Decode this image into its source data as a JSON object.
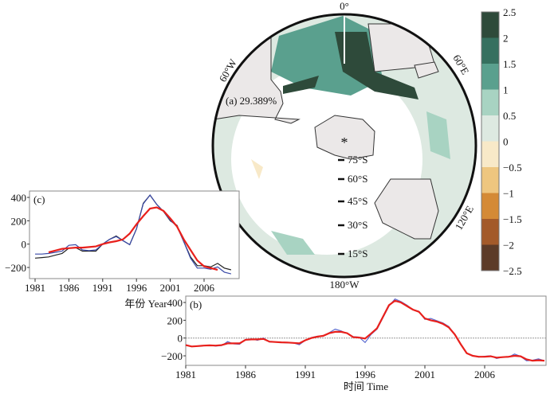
{
  "map": {
    "panel_label": "(a) 29.389%",
    "lon_labels": {
      "top": "0°",
      "right_upper": "60°E",
      "right_lower": "120°E",
      "bottom": "180°W",
      "left_upper": "60°W"
    },
    "lat_labels": [
      "75°S",
      "60°S",
      "45°S",
      "30°S",
      "15°S"
    ],
    "colors": {
      "land": "#ebe8e8",
      "coast": "#333333",
      "border": "#111111"
    }
  },
  "colorbar": {
    "ticks": [
      "2.5",
      "2",
      "1.5",
      "1",
      "0.5",
      "0",
      "−0.5",
      "−1",
      "−1.5",
      "−2",
      "−2.5"
    ],
    "colors": [
      "#2e4a3a",
      "#36705f",
      "#5aa08e",
      "#a8d3c2",
      "#dde9e1",
      "#f8e9c8",
      "#eec67f",
      "#d48a36",
      "#a35a2a",
      "#5c3b28"
    ]
  },
  "chart_data": [
    {
      "type": "line",
      "panel_label": "(c)",
      "xlabel": "年份 Year",
      "ylabel": "",
      "xlim": [
        1980.2,
        2011
      ],
      "ylim": [
        -260,
        440
      ],
      "xticks": [
        "1981",
        "1986",
        "1991",
        "1996",
        "2001",
        "2006"
      ],
      "yticks": [
        "400",
        "200",
        "0",
        "−200"
      ],
      "ytick_values": [
        400,
        200,
        0,
        -200
      ],
      "series": [
        {
          "name": "black",
          "color": "#222222",
          "x_start": 1981,
          "values": [
            -120,
            -115,
            -110,
            -95,
            -80,
            -35,
            -30,
            -60,
            -60,
            -60,
            0,
            40,
            70,
            30,
            -5,
            130,
            350,
            420,
            340,
            280,
            200,
            160,
            20,
            -110,
            -185,
            -185,
            -195,
            -165,
            -205,
            -220
          ]
        },
        {
          "name": "blue",
          "color": "#3a4aa8",
          "x_start": 1981,
          "values": [
            -85,
            -85,
            -80,
            -70,
            -60,
            -10,
            -5,
            -50,
            -55,
            -50,
            0,
            40,
            65,
            30,
            -5,
            130,
            345,
            420,
            340,
            280,
            205,
            150,
            20,
            -120,
            -205,
            -205,
            -215,
            -195,
            -240,
            -255
          ]
        },
        {
          "name": "red",
          "color": "#e8201c",
          "x_start": 1983,
          "values": [
            -70,
            -55,
            -40,
            -35,
            -30,
            -30,
            -25,
            -20,
            0,
            15,
            25,
            40,
            90,
            170,
            240,
            305,
            315,
            285,
            220,
            150,
            40,
            -50,
            -140,
            -190,
            -205,
            -220
          ]
        }
      ]
    },
    {
      "type": "line",
      "panel_label": "(b)",
      "xlabel": "时间 Time",
      "ylabel": "",
      "xlim": [
        1981,
        2011.2
      ],
      "ylim": [
        -260,
        440
      ],
      "xticks": [
        "1981",
        "1986",
        "1991",
        "1996",
        "2001",
        "2006"
      ],
      "yticks": [
        "400",
        "200",
        "0",
        "−200"
      ],
      "ytick_values": [
        400,
        200,
        0,
        -200
      ],
      "zero_line": true,
      "series": [
        {
          "name": "blue",
          "color": "#5a6ad0",
          "x_start": 1981,
          "step": 0.5,
          "values": [
            -75,
            -95,
            -90,
            -85,
            -80,
            -90,
            -85,
            -40,
            -65,
            -70,
            -15,
            -10,
            -25,
            0,
            -45,
            -45,
            -50,
            -55,
            -55,
            -75,
            -25,
            5,
            20,
            20,
            60,
            100,
            80,
            50,
            15,
            10,
            -50,
            40,
            100,
            230,
            360,
            440,
            410,
            370,
            320,
            300,
            210,
            220,
            195,
            170,
            130,
            40,
            -70,
            -170,
            -200,
            -215,
            -205,
            -200,
            -230,
            -215,
            -215,
            -180,
            -205,
            -255,
            -250,
            -235,
            -255
          ]
        },
        {
          "name": "red",
          "color": "#e8201c",
          "x_start": 1981,
          "step": 0.5,
          "values": [
            -80,
            -95,
            -90,
            -85,
            -82,
            -85,
            -80,
            -60,
            -60,
            -60,
            -20,
            -15,
            -15,
            -10,
            -40,
            -45,
            -48,
            -50,
            -55,
            -60,
            -25,
            0,
            15,
            25,
            55,
            70,
            70,
            55,
            10,
            5,
            -5,
            50,
            110,
            240,
            370,
            420,
            400,
            360,
            320,
            295,
            220,
            200,
            185,
            160,
            120,
            40,
            -70,
            -170,
            -200,
            -210,
            -210,
            -205,
            -220,
            -215,
            -210,
            -200,
            -205,
            -240,
            -255,
            -250,
            -255
          ]
        }
      ]
    }
  ]
}
